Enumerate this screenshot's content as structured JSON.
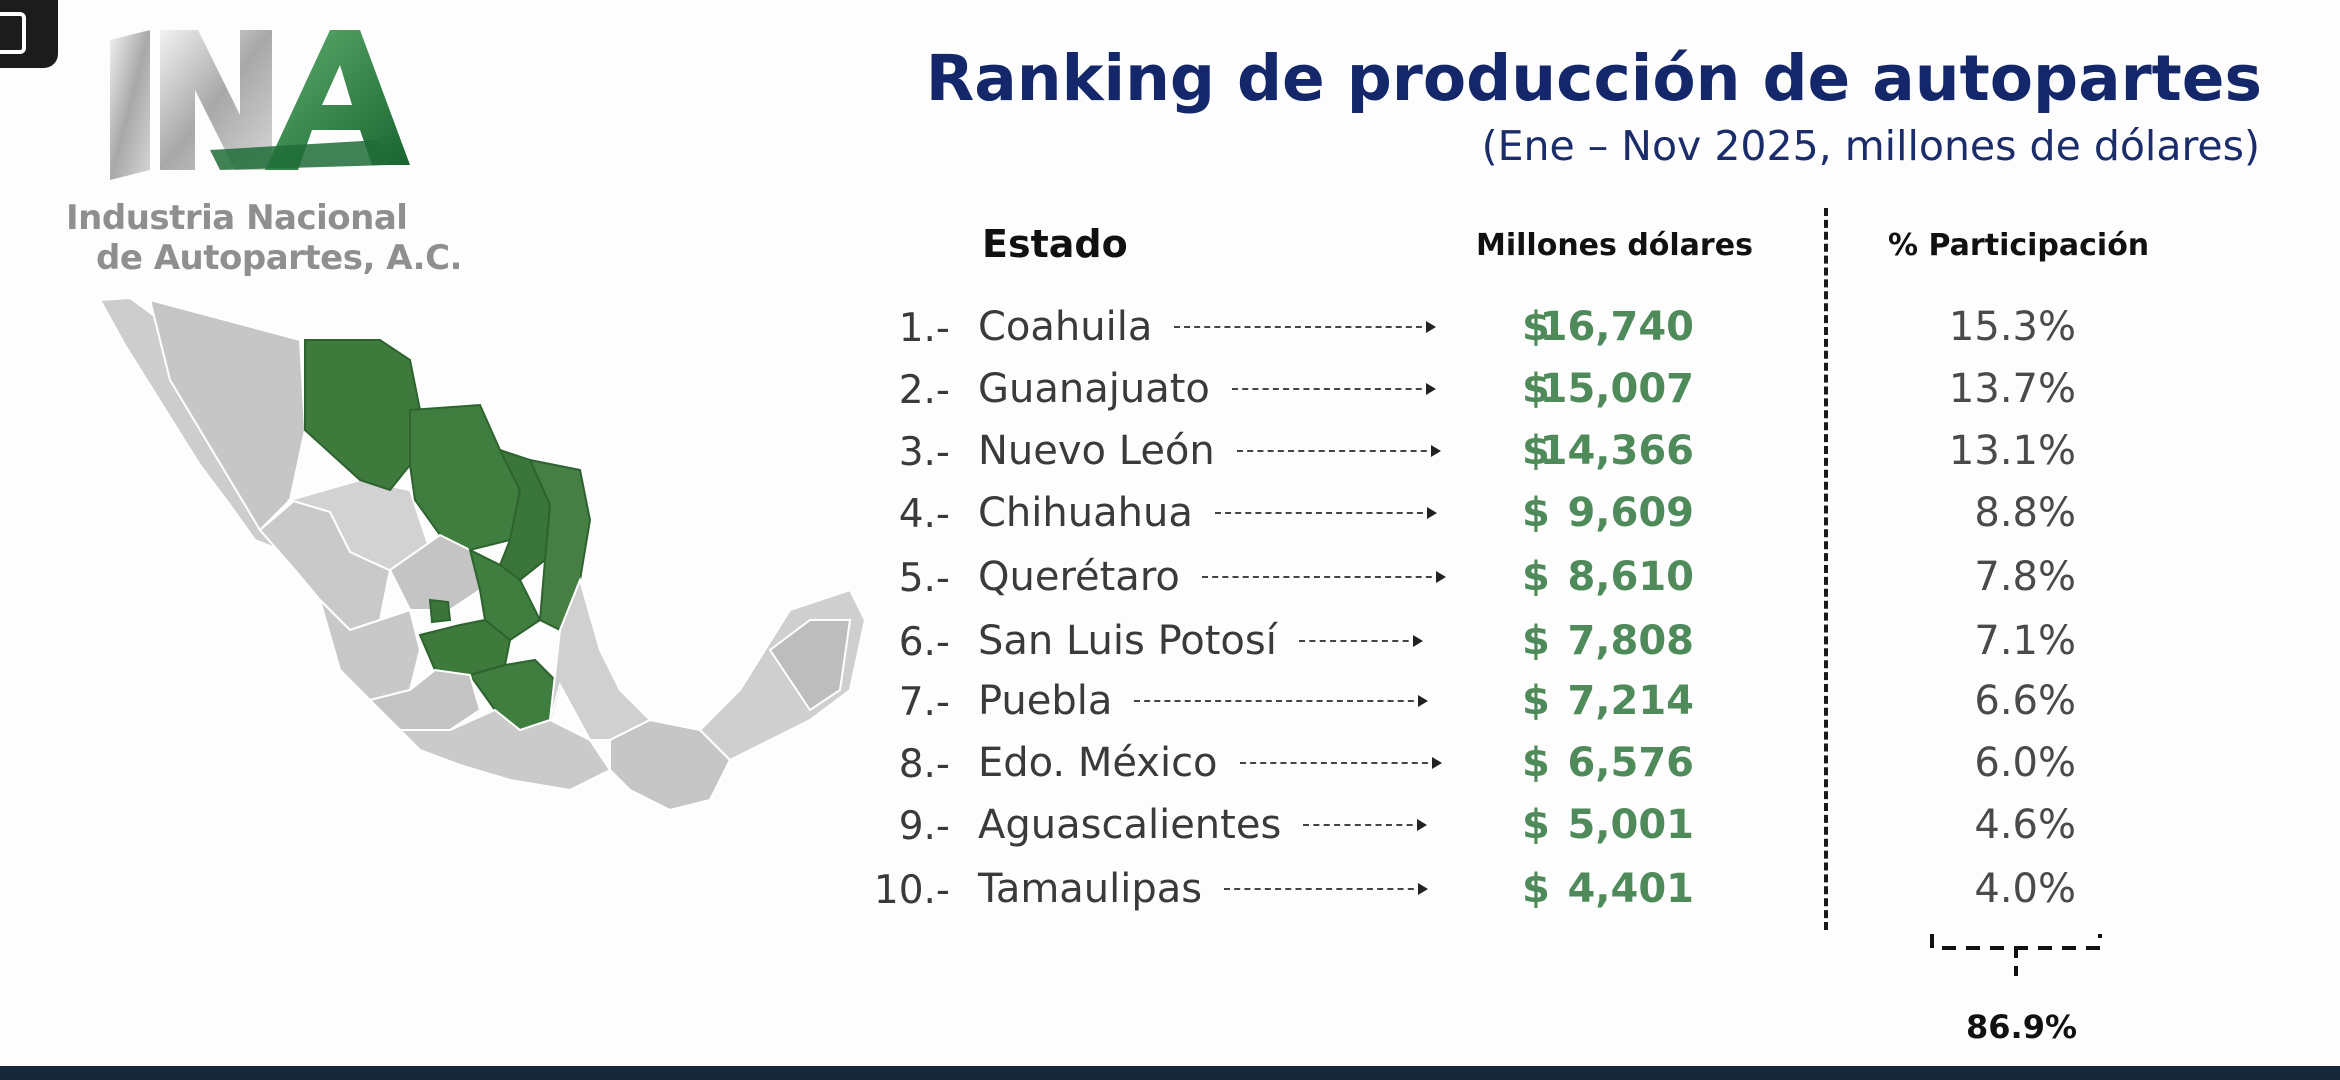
{
  "header": {
    "title": "Ranking de producción de autopartes",
    "subtitle": "(Ene – Nov 2025, millones de dólares)"
  },
  "logo": {
    "line1": "Industria Nacional",
    "line2": "de Autopartes, A.C.",
    "mark": "INA"
  },
  "table": {
    "headers": {
      "estado": "Estado",
      "millones": "Millones dólares",
      "participacion": "% Participación"
    },
    "currency_symbol": "$",
    "rows": [
      {
        "rank": "1.-",
        "state": "Coahuila",
        "value": "16,740",
        "pct": "15.3%"
      },
      {
        "rank": "2.-",
        "state": "Guanajuato",
        "value": "15,007",
        "pct": "13.7%"
      },
      {
        "rank": "3.-",
        "state": "Nuevo León",
        "value": "14,366",
        "pct": "13.1%"
      },
      {
        "rank": "4.-",
        "state": "Chihuahua",
        "value": "9,609",
        "pct": "8.8%"
      },
      {
        "rank": "5.-",
        "state": "Querétaro",
        "value": "8,610",
        "pct": "7.8%"
      },
      {
        "rank": "6.-",
        "state": "San Luis Potosí",
        "value": "7,808",
        "pct": "7.1%"
      },
      {
        "rank": "7.-",
        "state": "Puebla",
        "value": "7,214",
        "pct": "6.6%"
      },
      {
        "rank": "8.-",
        "state": "Edo. México",
        "value": "6,576",
        "pct": "6.0%"
      },
      {
        "rank": "9.-",
        "state": "Aguascalientes",
        "value": "5,001",
        "pct": "4.6%"
      },
      {
        "rank": "10.-",
        "state": "Tamaulipas",
        "value": "4,401",
        "pct": "4.0%"
      }
    ],
    "total_pct": "86.9%"
  },
  "colors": {
    "title": "#13276a",
    "value_green": "#4f8a5a",
    "map_highlight": "#3d7a3c",
    "map_base": "#c9c9c9"
  }
}
